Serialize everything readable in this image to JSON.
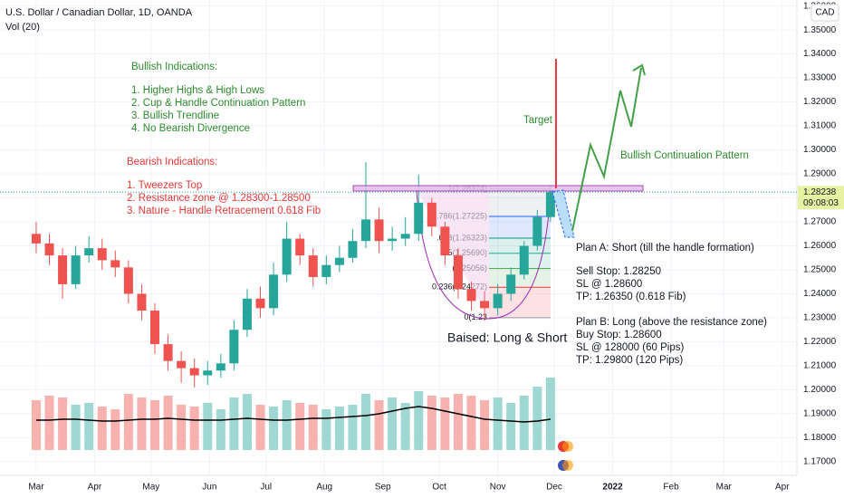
{
  "header": {
    "symbol": "U.S. Dollar / Canadian Dollar, 1D, OANDA",
    "indicator": "Vol (20)",
    "currency": "CAD",
    "countdown": "09:08:03"
  },
  "chart_data": {
    "type": "candlestick",
    "x": [
      0,
      7,
      14,
      21,
      28,
      35,
      42,
      49,
      56,
      63,
      70,
      77,
      84,
      91,
      98,
      105,
      112,
      119,
      126,
      133,
      140,
      147,
      154,
      161,
      168,
      175,
      182,
      189,
      196,
      203,
      210,
      217,
      224,
      231,
      238,
      245,
      252,
      259,
      266,
      273
    ],
    "open": [
      1.265,
      1.261,
      1.256,
      1.244,
      1.256,
      1.259,
      1.254,
      1.251,
      1.24,
      1.233,
      1.219,
      1.212,
      1.209,
      1.206,
      1.208,
      1.211,
      1.225,
      1.238,
      1.234,
      1.248,
      1.263,
      1.256,
      1.247,
      1.252,
      1.255,
      1.262,
      1.271,
      1.262,
      1.263,
      1.265,
      1.278,
      1.268,
      1.256,
      1.242,
      1.237,
      1.234,
      1.24,
      1.248,
      1.26,
      1.272
    ],
    "high": [
      1.27,
      1.265,
      1.259,
      1.26,
      1.264,
      1.263,
      1.258,
      1.254,
      1.244,
      1.236,
      1.223,
      1.216,
      1.213,
      1.212,
      1.215,
      1.229,
      1.242,
      1.243,
      1.253,
      1.27,
      1.265,
      1.259,
      1.256,
      1.26,
      1.267,
      1.2949,
      1.276,
      1.268,
      1.272,
      1.2896,
      1.28,
      1.27,
      1.259,
      1.245,
      1.241,
      1.244,
      1.251,
      1.262,
      1.275,
      1.285
    ],
    "low": [
      1.257,
      1.252,
      1.238,
      1.242,
      1.253,
      1.25,
      1.247,
      1.236,
      1.229,
      1.215,
      1.208,
      1.203,
      1.201,
      1.202,
      1.205,
      1.208,
      1.222,
      1.23,
      1.231,
      1.245,
      1.252,
      1.243,
      1.244,
      1.249,
      1.253,
      1.259,
      1.257,
      1.258,
      1.26,
      1.262,
      1.264,
      1.252,
      1.238,
      1.233,
      1.2288,
      1.231,
      1.237,
      1.246,
      1.258,
      1.27
    ],
    "close": [
      1.261,
      1.256,
      1.244,
      1.256,
      1.259,
      1.254,
      1.251,
      1.24,
      1.233,
      1.219,
      1.212,
      1.209,
      1.206,
      1.208,
      1.211,
      1.225,
      1.238,
      1.234,
      1.248,
      1.263,
      1.256,
      1.247,
      1.252,
      1.255,
      1.262,
      1.271,
      1.262,
      1.263,
      1.265,
      1.278,
      1.268,
      1.256,
      1.242,
      1.237,
      1.234,
      1.24,
      1.248,
      1.26,
      1.272,
      1.2824
    ],
    "volume": [
      55,
      60,
      58,
      50,
      52,
      48,
      45,
      62,
      58,
      55,
      60,
      50,
      48,
      52,
      45,
      58,
      62,
      50,
      48,
      55,
      52,
      50,
      45,
      48,
      50,
      62,
      55,
      58,
      52,
      65,
      60,
      58,
      62,
      60,
      55,
      58,
      52,
      60,
      70,
      80
    ],
    "volume_ma": [
      33,
      33,
      34,
      34,
      33,
      32,
      32,
      33,
      34,
      34,
      35,
      34,
      33,
      33,
      33,
      34,
      35,
      34,
      33,
      33,
      34,
      35,
      35,
      36,
      37,
      38,
      40,
      43,
      46,
      48,
      46,
      43,
      40,
      37,
      34,
      33,
      32,
      31,
      32,
      34
    ],
    "up_color": "#26a69a",
    "down_color": "#ef5350",
    "volume_up_color": "#9fd8d2",
    "volume_down_color": "#f7b2b0",
    "volume_ma_color": "#000000",
    "grid": true,
    "xlim": [
      -19.2,
      403.8
    ],
    "xticks": [
      {
        "value": 0,
        "label": "Mar"
      },
      {
        "value": 31,
        "label": "Apr"
      },
      {
        "value": 61,
        "label": "May"
      },
      {
        "value": 92,
        "label": "Jun"
      },
      {
        "value": 122,
        "label": "Jul"
      },
      {
        "value": 153,
        "label": "Aug"
      },
      {
        "value": 184,
        "label": "Sep"
      },
      {
        "value": 214,
        "label": "Oct"
      },
      {
        "value": 245,
        "label": "Nov"
      },
      {
        "value": 275,
        "label": "Dec"
      },
      {
        "value": 306,
        "label": "2022"
      },
      {
        "value": 337,
        "label": "Feb"
      },
      {
        "value": 365,
        "label": "Mar"
      },
      {
        "value": 396,
        "label": "Apr"
      }
    ],
    "ylim": [
      1.1643,
      1.3625
    ],
    "yticks": [
      {
        "value": 1.17,
        "label": "1.17000"
      },
      {
        "value": 1.18,
        "label": "1.18000"
      },
      {
        "value": 1.19,
        "label": "1.19000"
      },
      {
        "value": 1.2,
        "label": "1.20000"
      },
      {
        "value": 1.21,
        "label": "1.21000"
      },
      {
        "value": 1.22,
        "label": "1.22000"
      },
      {
        "value": 1.23,
        "label": "1.23000"
      },
      {
        "value": 1.24,
        "label": "1.24000"
      },
      {
        "value": 1.25,
        "label": "1.25000"
      },
      {
        "value": 1.26,
        "label": "1.26000"
      },
      {
        "value": 1.27,
        "label": "1.27000"
      },
      {
        "value": 1.28,
        "label": "1.28000"
      },
      {
        "value": 1.29,
        "label": "1.29000"
      },
      {
        "value": 1.3,
        "label": "1.30000"
      },
      {
        "value": 1.31,
        "label": "1.31000"
      },
      {
        "value": 1.32,
        "label": "1.32000"
      },
      {
        "value": 1.33,
        "label": "1.33000"
      },
      {
        "value": 1.34,
        "label": "1.34000"
      },
      {
        "value": 1.35,
        "label": "1.35000"
      },
      {
        "value": 1.36,
        "label": "1.36000"
      }
    ],
    "last_price": 1.28238,
    "last_price_color": "#e6f2a2",
    "fib_levels": [
      {
        "label": "1(1.28374)",
        "price": 1.28374,
        "color": "#9598a1"
      },
      {
        "label": ".786(1.27225)",
        "price": 1.27225,
        "color": "#2962ff"
      },
      {
        "label": ".618(1.26323)",
        "price": 1.26323,
        "color": "#089981"
      },
      {
        "label": ".5(1.25690)",
        "price": 1.2569,
        "color": "#22ab94"
      },
      {
        "label": "(1.25056)",
        "price": 1.25056,
        "color": "#4caf50"
      },
      {
        "label": "0.236(1.24272)",
        "price": 1.24272,
        "color": "#f23645"
      },
      {
        "label": "0(1.23",
        "price": 1.23005,
        "color": "#9598a1"
      }
    ]
  },
  "annotations": {
    "bullish_title": "Bullish Indications:",
    "bullish_items": [
      "1. Higher Highs & High Lows",
      "2. Cup & Handle Continuation Pattern",
      "3. Bullish Trendline",
      "4. No Bearish Divergence"
    ],
    "bearish_title": "Bearish Indications:",
    "bearish_items": [
      "1. Tweezers Top",
      "2. Resistance zone @ 1.28300-1.28500",
      "3. Nature - Handle Retracement 0.618 Fib"
    ],
    "target": "Target",
    "continuation": "Bullish Continuation Pattern",
    "bias": "Baised: Long & Short",
    "plan_a": [
      "Plan A: Short (till the handle formation)",
      "Sell Stop: 1.28250",
      "SL @ 1.28600",
      "TP: 1.26350 (0.618 Fib)"
    ],
    "plan_b": [
      "Plan B: Long (above the resistance zone)",
      "Buy Stop: 1.28600",
      "SL @ 128000 (60 Pips)",
      "TP: 1.29800 (120 Pips)"
    ]
  }
}
